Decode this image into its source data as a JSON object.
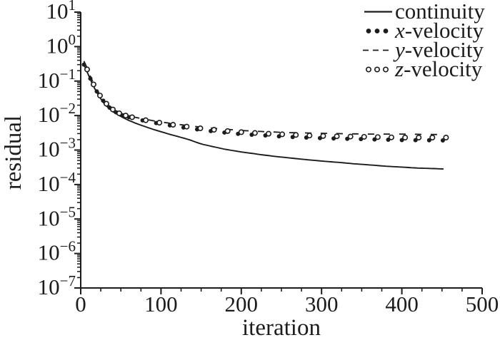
{
  "figure": {
    "background": "#ffffff",
    "ink": "#1c1c1c"
  },
  "chart_data": {
    "type": "line",
    "title": "",
    "xlabel": "iteration",
    "ylabel": "residual",
    "x_axis": {
      "min": 0,
      "max": 500,
      "major_ticks": [
        0,
        100,
        200,
        300,
        400,
        500
      ],
      "minor_step": 25
    },
    "y_axis": {
      "scale": "log",
      "base": "10",
      "exponents": [
        1,
        0,
        -1,
        -2,
        -3,
        -4,
        -5,
        -6,
        -7
      ],
      "minor_mantissas": [
        2,
        3,
        4,
        5,
        6,
        7,
        8,
        9
      ]
    },
    "grid": false,
    "legend": {
      "position": "top-right",
      "items": [
        {
          "name": "continuity",
          "var": "",
          "label": "continuity",
          "style": "solid-line"
        },
        {
          "name": "x-velocity",
          "var": "x",
          "label": "-velocity",
          "style": "filled-dots"
        },
        {
          "name": "y-velocity",
          "var": "y",
          "label": "-velocity",
          "style": "dashed-line"
        },
        {
          "name": "z-velocity",
          "var": "z",
          "label": "-velocity",
          "style": "open-circles"
        }
      ]
    },
    "series": [
      {
        "name": "continuity",
        "style": "solid-line",
        "points": [
          [
            4,
            0.3
          ],
          [
            7,
            0.21
          ],
          [
            10,
            0.14
          ],
          [
            13,
            0.1
          ],
          [
            16,
            0.07
          ],
          [
            20,
            0.047
          ],
          [
            24,
            0.033
          ],
          [
            28,
            0.024
          ],
          [
            32,
            0.019
          ],
          [
            36,
            0.0155
          ],
          [
            40,
            0.013
          ],
          [
            45,
            0.011
          ],
          [
            50,
            0.0094
          ],
          [
            60,
            0.0072
          ],
          [
            70,
            0.0058
          ],
          [
            80,
            0.0048
          ],
          [
            90,
            0.004
          ],
          [
            100,
            0.0034
          ],
          [
            110,
            0.0029
          ],
          [
            120,
            0.0025
          ],
          [
            135,
            0.002
          ],
          [
            150,
            0.0015
          ],
          [
            165,
            0.00125
          ],
          [
            180,
            0.00105
          ],
          [
            200,
            0.00088
          ],
          [
            220,
            0.00076
          ],
          [
            240,
            0.00066
          ],
          [
            260,
            0.00059
          ],
          [
            280,
            0.00053
          ],
          [
            300,
            0.00048
          ],
          [
            320,
            0.00044
          ],
          [
            340,
            0.0004
          ],
          [
            360,
            0.00037
          ],
          [
            380,
            0.00034
          ],
          [
            400,
            0.00032
          ],
          [
            420,
            0.0003
          ],
          [
            440,
            0.00029
          ],
          [
            455,
            0.00028
          ]
        ]
      },
      {
        "name": "x-velocity",
        "style": "filled-dots",
        "marker_start": 4,
        "points": [
          [
            4,
            0.3
          ],
          [
            7,
            0.22
          ],
          [
            10,
            0.15
          ],
          [
            13,
            0.105
          ],
          [
            16,
            0.075
          ],
          [
            20,
            0.05
          ],
          [
            24,
            0.036
          ],
          [
            28,
            0.027
          ],
          [
            32,
            0.021
          ],
          [
            36,
            0.017
          ],
          [
            40,
            0.0145
          ],
          [
            45,
            0.012
          ],
          [
            50,
            0.0105
          ],
          [
            60,
            0.009
          ],
          [
            70,
            0.0079
          ],
          [
            80,
            0.007
          ],
          [
            90,
            0.0063
          ],
          [
            100,
            0.0057
          ],
          [
            120,
            0.0048
          ],
          [
            140,
            0.0041
          ],
          [
            160,
            0.0036
          ],
          [
            180,
            0.0032
          ],
          [
            200,
            0.0029
          ],
          [
            230,
            0.00265
          ],
          [
            260,
            0.0024
          ],
          [
            290,
            0.00225
          ],
          [
            320,
            0.00215
          ],
          [
            360,
            0.00205
          ],
          [
            400,
            0.00195
          ],
          [
            455,
            0.0019
          ]
        ]
      },
      {
        "name": "y-velocity",
        "style": "dashed-line",
        "points": [
          [
            4,
            0.38
          ],
          [
            7,
            0.27
          ],
          [
            10,
            0.18
          ],
          [
            13,
            0.12
          ],
          [
            16,
            0.085
          ],
          [
            20,
            0.057
          ],
          [
            24,
            0.04
          ],
          [
            28,
            0.03
          ],
          [
            32,
            0.023
          ],
          [
            36,
            0.0185
          ],
          [
            40,
            0.0158
          ],
          [
            45,
            0.0132
          ],
          [
            50,
            0.0115
          ],
          [
            60,
            0.0098
          ],
          [
            70,
            0.0087
          ],
          [
            80,
            0.0078
          ],
          [
            90,
            0.0071
          ],
          [
            100,
            0.0065
          ],
          [
            120,
            0.0056
          ],
          [
            140,
            0.0049
          ],
          [
            160,
            0.0044
          ],
          [
            180,
            0.004
          ],
          [
            200,
            0.0037
          ],
          [
            230,
            0.0034
          ],
          [
            260,
            0.0032
          ],
          [
            290,
            0.0031
          ],
          [
            320,
            0.003
          ],
          [
            360,
            0.0029
          ],
          [
            400,
            0.0029
          ],
          [
            455,
            0.0028
          ]
        ]
      },
      {
        "name": "z-velocity",
        "style": "open-circles",
        "marker_start": 8,
        "points": [
          [
            4,
            0.34
          ],
          [
            7,
            0.25
          ],
          [
            10,
            0.165
          ],
          [
            13,
            0.11
          ],
          [
            16,
            0.08
          ],
          [
            20,
            0.053
          ],
          [
            24,
            0.038
          ],
          [
            28,
            0.028
          ],
          [
            32,
            0.022
          ],
          [
            36,
            0.0178
          ],
          [
            40,
            0.015
          ],
          [
            45,
            0.0126
          ],
          [
            50,
            0.011
          ],
          [
            60,
            0.0094
          ],
          [
            70,
            0.0083
          ],
          [
            80,
            0.0074
          ],
          [
            90,
            0.0067
          ],
          [
            100,
            0.0061
          ],
          [
            120,
            0.0052
          ],
          [
            140,
            0.0045
          ],
          [
            160,
            0.004
          ],
          [
            180,
            0.0036
          ],
          [
            200,
            0.0033
          ],
          [
            230,
            0.003
          ],
          [
            260,
            0.0028
          ],
          [
            290,
            0.0026
          ],
          [
            320,
            0.0025
          ],
          [
            360,
            0.0024
          ],
          [
            400,
            0.0023
          ],
          [
            455,
            0.0023
          ]
        ]
      }
    ]
  }
}
